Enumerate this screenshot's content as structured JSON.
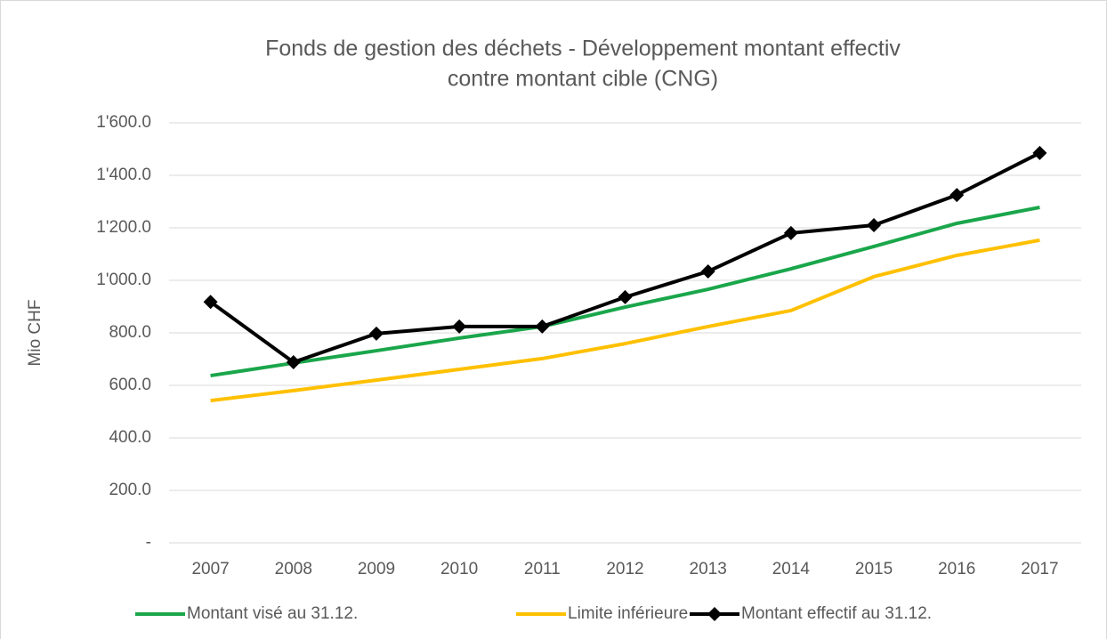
{
  "chart_data": {
    "type": "line",
    "title": [
      "Fonds de gestion des déchets - Développement montant effectiv",
      "contre montant cible (CNG)"
    ],
    "ylabel": "Mio CHF",
    "categories": [
      "2007",
      "2008",
      "2009",
      "2010",
      "2011",
      "2012",
      "2013",
      "2014",
      "2015",
      "2016",
      "2017"
    ],
    "series": [
      {
        "name": "Montant visé au 31.12.",
        "color": "#1aa64b",
        "marker": false,
        "values": [
          637,
          685,
          732,
          780,
          824,
          898,
          966,
          1044,
          1129,
          1217,
          1278
        ]
      },
      {
        "name": "Limite inférieure",
        "color": "#ffc000",
        "marker": false,
        "values": [
          542,
          580,
          620,
          661,
          702,
          759,
          824,
          885,
          1014,
          1095,
          1153
        ]
      },
      {
        "name": "Montant effectif au 31.12.",
        "color": "#000000",
        "marker": true,
        "values": [
          918,
          688,
          797,
          824,
          824,
          936,
          1034,
          1180,
          1210,
          1325,
          1485
        ]
      }
    ],
    "ylim": [
      0,
      1600
    ],
    "yticks": [
      {
        "value": 0,
        "label": "-"
      },
      {
        "value": 200,
        "label": "200.0"
      },
      {
        "value": 400,
        "label": "400.0"
      },
      {
        "value": 600,
        "label": "600.0"
      },
      {
        "value": 800,
        "label": "800.0"
      },
      {
        "value": 1000,
        "label": "1'000.0"
      },
      {
        "value": 1200,
        "label": "1'200.0"
      },
      {
        "value": 1400,
        "label": "1'400.0"
      },
      {
        "value": 1600,
        "label": "1'600.0"
      }
    ],
    "grid": true,
    "legend": "bottom"
  }
}
